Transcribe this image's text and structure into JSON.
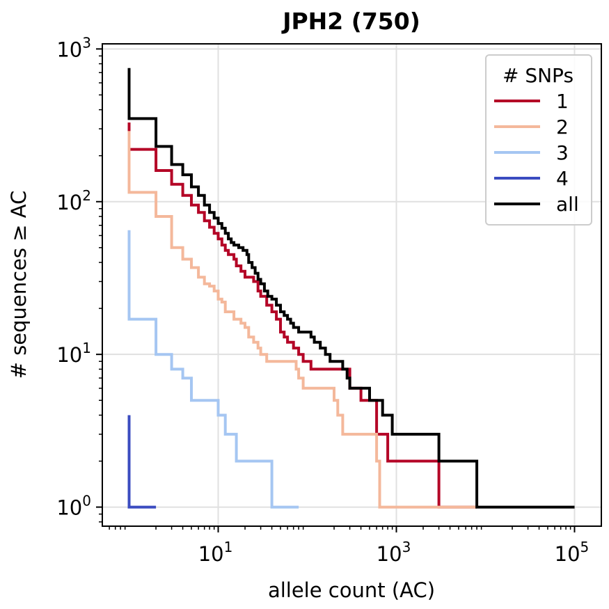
{
  "chart_data": {
    "type": "line",
    "title": "JPH2 (750)",
    "xlabel": "allele count (AC)",
    "ylabel": "# sequences ≥ AC",
    "xscale": "log",
    "yscale": "log",
    "xlim": [
      0.5,
      200000
    ],
    "ylim": [
      0.75,
      1080
    ],
    "x_ticks": [
      {
        "value": 10,
        "base": "10",
        "exp": "1"
      },
      {
        "value": 1000,
        "base": "10",
        "exp": "3"
      },
      {
        "value": 100000,
        "base": "10",
        "exp": "5"
      }
    ],
    "y_ticks": [
      {
        "value": 1,
        "base": "10",
        "exp": "0"
      },
      {
        "value": 10,
        "base": "10",
        "exp": "1"
      },
      {
        "value": 100,
        "base": "10",
        "exp": "2"
      },
      {
        "value": 1000,
        "base": "10",
        "exp": "3"
      }
    ],
    "grid": true,
    "legend": {
      "title": "# SNPs",
      "placement": "top-right"
    },
    "series": [
      {
        "name": "1",
        "color": "#b40426",
        "points": [
          [
            1,
            330
          ],
          [
            1,
            220
          ],
          [
            2,
            220
          ],
          [
            2,
            160
          ],
          [
            3,
            160
          ],
          [
            3,
            130
          ],
          [
            4,
            130
          ],
          [
            4,
            110
          ],
          [
            5,
            110
          ],
          [
            5,
            95
          ],
          [
            6,
            95
          ],
          [
            6,
            85
          ],
          [
            7,
            85
          ],
          [
            7,
            75
          ],
          [
            8,
            75
          ],
          [
            8,
            68
          ],
          [
            9,
            68
          ],
          [
            9,
            62
          ],
          [
            10,
            62
          ],
          [
            10,
            57
          ],
          [
            11,
            57
          ],
          [
            11,
            52
          ],
          [
            12,
            52
          ],
          [
            12,
            48
          ],
          [
            13,
            48
          ],
          [
            13,
            45
          ],
          [
            15,
            45
          ],
          [
            15,
            42
          ],
          [
            16,
            42
          ],
          [
            16,
            38
          ],
          [
            18,
            38
          ],
          [
            18,
            35
          ],
          [
            20,
            35
          ],
          [
            20,
            32
          ],
          [
            25,
            32
          ],
          [
            25,
            30
          ],
          [
            28,
            30
          ],
          [
            28,
            26
          ],
          [
            30,
            26
          ],
          [
            30,
            24
          ],
          [
            35,
            24
          ],
          [
            35,
            21
          ],
          [
            40,
            21
          ],
          [
            40,
            19
          ],
          [
            45,
            19
          ],
          [
            45,
            17
          ],
          [
            50,
            17
          ],
          [
            50,
            14
          ],
          [
            55,
            14
          ],
          [
            55,
            13
          ],
          [
            60,
            13
          ],
          [
            60,
            12
          ],
          [
            70,
            12
          ],
          [
            70,
            11
          ],
          [
            80,
            11
          ],
          [
            80,
            10
          ],
          [
            90,
            10
          ],
          [
            90,
            9
          ],
          [
            110,
            9
          ],
          [
            110,
            8
          ],
          [
            300,
            8
          ],
          [
            300,
            6
          ],
          [
            400,
            6
          ],
          [
            400,
            5
          ],
          [
            600,
            5
          ],
          [
            600,
            3
          ],
          [
            800,
            3
          ],
          [
            800,
            2
          ],
          [
            3000,
            2
          ],
          [
            3000,
            1
          ],
          [
            8000,
            1
          ]
        ]
      },
      {
        "name": "2",
        "color": "#f4b89b",
        "points": [
          [
            1,
            290
          ],
          [
            1,
            115
          ],
          [
            2,
            115
          ],
          [
            2,
            80
          ],
          [
            3,
            80
          ],
          [
            3,
            50
          ],
          [
            4,
            50
          ],
          [
            4,
            42
          ],
          [
            5,
            42
          ],
          [
            5,
            37
          ],
          [
            6,
            37
          ],
          [
            6,
            32
          ],
          [
            7,
            32
          ],
          [
            7,
            29
          ],
          [
            8,
            29
          ],
          [
            8,
            28
          ],
          [
            9,
            28
          ],
          [
            9,
            26
          ],
          [
            10,
            26
          ],
          [
            10,
            23
          ],
          [
            11,
            23
          ],
          [
            11,
            22
          ],
          [
            12,
            22
          ],
          [
            12,
            19
          ],
          [
            15,
            19
          ],
          [
            15,
            17
          ],
          [
            18,
            17
          ],
          [
            18,
            16
          ],
          [
            20,
            16
          ],
          [
            20,
            15
          ],
          [
            22,
            15
          ],
          [
            22,
            13
          ],
          [
            25,
            13
          ],
          [
            25,
            12
          ],
          [
            28,
            12
          ],
          [
            28,
            11
          ],
          [
            30,
            11
          ],
          [
            30,
            10
          ],
          [
            35,
            10
          ],
          [
            35,
            9
          ],
          [
            75,
            9
          ],
          [
            75,
            8
          ],
          [
            80,
            8
          ],
          [
            80,
            7
          ],
          [
            90,
            7
          ],
          [
            90,
            6
          ],
          [
            200,
            6
          ],
          [
            200,
            5
          ],
          [
            220,
            5
          ],
          [
            220,
            4
          ],
          [
            250,
            4
          ],
          [
            250,
            3
          ],
          [
            600,
            3
          ],
          [
            600,
            2
          ],
          [
            650,
            2
          ],
          [
            650,
            1
          ],
          [
            8000,
            1
          ]
        ]
      },
      {
        "name": "3",
        "color": "#a5c6f2",
        "points": [
          [
            1,
            65
          ],
          [
            1,
            17
          ],
          [
            2,
            17
          ],
          [
            2,
            10
          ],
          [
            3,
            10
          ],
          [
            3,
            8
          ],
          [
            4,
            8
          ],
          [
            4,
            7
          ],
          [
            5,
            7
          ],
          [
            5,
            5
          ],
          [
            10,
            5
          ],
          [
            10,
            4
          ],
          [
            12,
            4
          ],
          [
            12,
            3
          ],
          [
            16,
            3
          ],
          [
            16,
            2
          ],
          [
            40,
            2
          ],
          [
            40,
            1
          ],
          [
            80,
            1
          ]
        ]
      },
      {
        "name": "4",
        "color": "#3b4cc0",
        "points": [
          [
            1,
            4
          ],
          [
            1,
            1
          ],
          [
            2,
            1
          ]
        ]
      },
      {
        "name": "all",
        "color": "#000000",
        "points": [
          [
            1,
            750
          ],
          [
            1,
            350
          ],
          [
            2,
            350
          ],
          [
            2,
            230
          ],
          [
            3,
            230
          ],
          [
            3,
            175
          ],
          [
            4,
            175
          ],
          [
            4,
            150
          ],
          [
            5,
            150
          ],
          [
            5,
            125
          ],
          [
            6,
            125
          ],
          [
            6,
            110
          ],
          [
            7,
            110
          ],
          [
            7,
            95
          ],
          [
            8,
            95
          ],
          [
            8,
            85
          ],
          [
            9,
            85
          ],
          [
            9,
            78
          ],
          [
            10,
            78
          ],
          [
            10,
            72
          ],
          [
            11,
            72
          ],
          [
            11,
            67
          ],
          [
            12,
            67
          ],
          [
            12,
            62
          ],
          [
            13,
            62
          ],
          [
            13,
            57
          ],
          [
            14,
            57
          ],
          [
            14,
            54
          ],
          [
            15,
            54
          ],
          [
            15,
            52
          ],
          [
            17,
            52
          ],
          [
            17,
            50
          ],
          [
            19,
            50
          ],
          [
            19,
            48
          ],
          [
            21,
            48
          ],
          [
            21,
            45
          ],
          [
            22,
            45
          ],
          [
            22,
            40
          ],
          [
            24,
            40
          ],
          [
            24,
            37
          ],
          [
            26,
            37
          ],
          [
            26,
            34
          ],
          [
            28,
            34
          ],
          [
            28,
            31
          ],
          [
            30,
            31
          ],
          [
            30,
            29
          ],
          [
            33,
            29
          ],
          [
            33,
            26
          ],
          [
            36,
            26
          ],
          [
            36,
            24
          ],
          [
            40,
            24
          ],
          [
            40,
            23
          ],
          [
            45,
            23
          ],
          [
            45,
            21
          ],
          [
            50,
            21
          ],
          [
            50,
            19
          ],
          [
            55,
            19
          ],
          [
            55,
            18
          ],
          [
            60,
            18
          ],
          [
            60,
            17
          ],
          [
            65,
            17
          ],
          [
            65,
            16
          ],
          [
            70,
            16
          ],
          [
            70,
            15
          ],
          [
            80,
            15
          ],
          [
            80,
            14
          ],
          [
            110,
            14
          ],
          [
            110,
            13
          ],
          [
            120,
            13
          ],
          [
            120,
            12
          ],
          [
            140,
            12
          ],
          [
            140,
            11
          ],
          [
            160,
            11
          ],
          [
            160,
            10
          ],
          [
            180,
            10
          ],
          [
            180,
            9
          ],
          [
            250,
            9
          ],
          [
            250,
            8
          ],
          [
            280,
            8
          ],
          [
            280,
            7
          ],
          [
            300,
            7
          ],
          [
            300,
            6
          ],
          [
            500,
            6
          ],
          [
            500,
            5
          ],
          [
            700,
            5
          ],
          [
            700,
            4
          ],
          [
            900,
            4
          ],
          [
            900,
            3
          ],
          [
            3000,
            3
          ],
          [
            3000,
            2
          ],
          [
            8000,
            2
          ],
          [
            8000,
            1
          ],
          [
            100000,
            1
          ]
        ]
      }
    ]
  }
}
